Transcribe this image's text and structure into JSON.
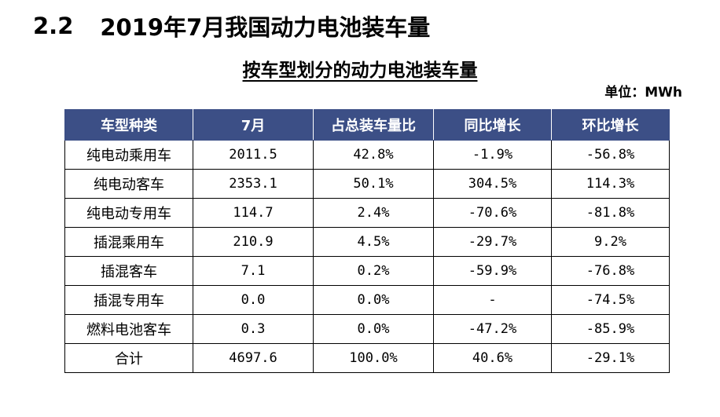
{
  "section": {
    "number": "2.2",
    "title": "2019年7月我国动力电池装车量"
  },
  "table_title": "按车型划分的动力电池装车量",
  "unit_label": "单位：MWh",
  "table": {
    "headers": [
      "车型种类",
      "7月",
      "占总装车量比",
      "同比增长",
      "环比增长"
    ],
    "rows": [
      [
        "纯电动乘用车",
        "2011.5",
        "42.8%",
        "-1.9%",
        "-56.8%"
      ],
      [
        "纯电动客车",
        "2353.1",
        "50.1%",
        "304.5%",
        "114.3%"
      ],
      [
        "纯电动专用车",
        "114.7",
        "2.4%",
        "-70.6%",
        "-81.8%"
      ],
      [
        "插混乘用车",
        "210.9",
        "4.5%",
        "-29.7%",
        "9.2%"
      ],
      [
        "插混客车",
        "7.1",
        "0.2%",
        "-59.9%",
        "-76.8%"
      ],
      [
        "插混专用车",
        "0.0",
        "0.0%",
        "-",
        "-74.5%"
      ],
      [
        "燃料电池客车",
        "0.3",
        "0.0%",
        "-47.2%",
        "-85.9%"
      ],
      [
        "合计",
        "4697.6",
        "100.0%",
        "40.6%",
        "-29.1%"
      ]
    ]
  },
  "colors": {
    "header_background": "#3c4f86",
    "header_text": "#ffffff"
  }
}
